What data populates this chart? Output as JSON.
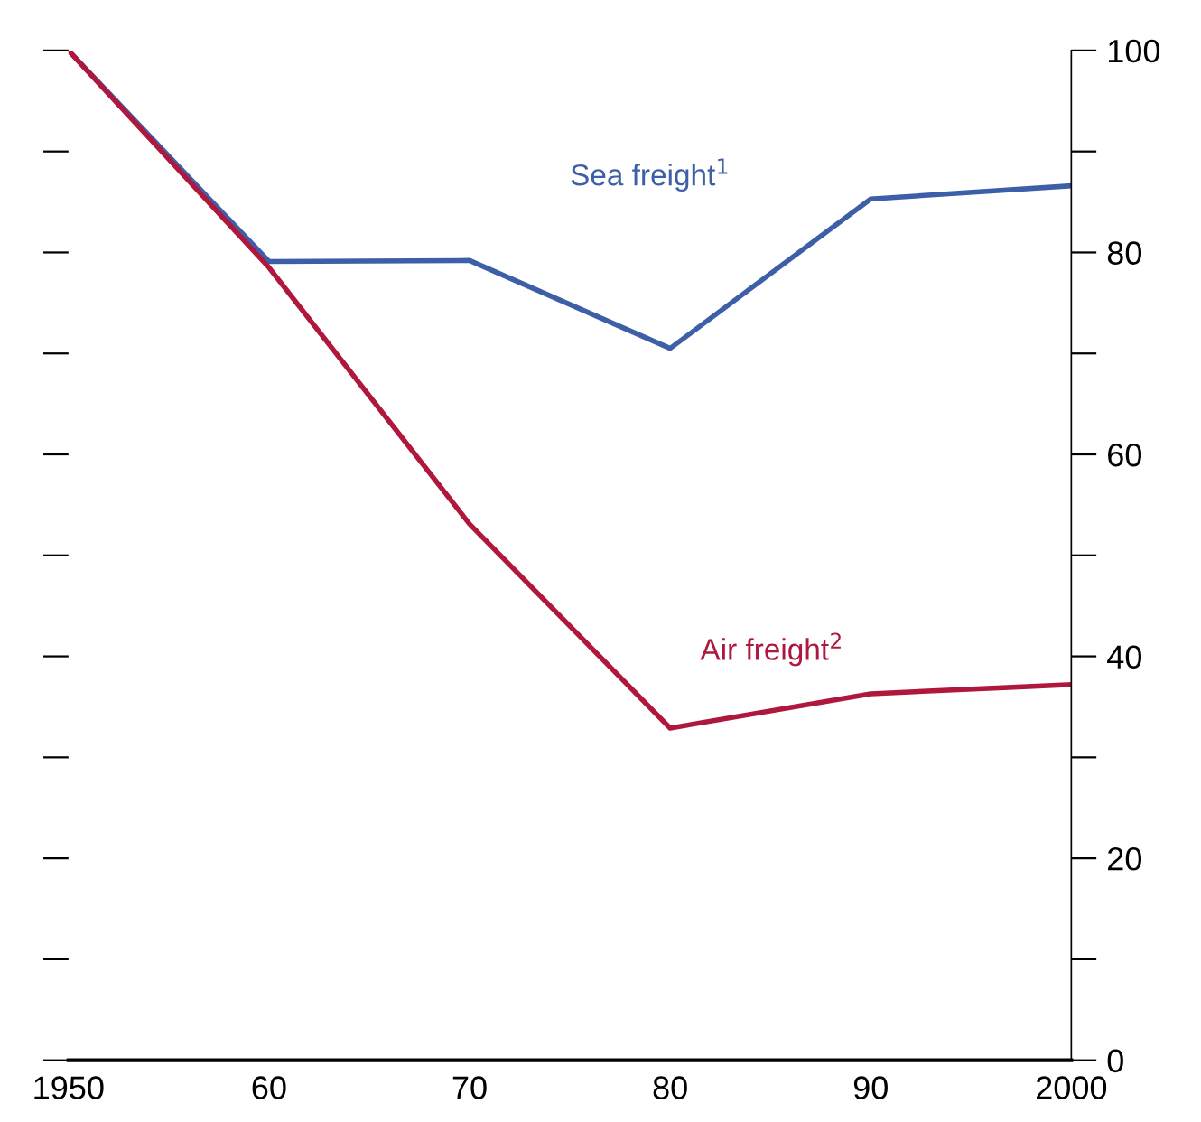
{
  "chart_data": {
    "type": "line",
    "x": [
      1950,
      1960,
      1970,
      1980,
      1990,
      2000
    ],
    "series": [
      {
        "name": "Sea freight$^{1}$",
        "color": "#3d5fa8",
        "values": [
          100,
          79.1,
          79.2,
          70.5,
          85.3,
          86.6
        ]
      },
      {
        "name": "Air freight$^{2}$",
        "color": "#b0173c",
        "values": [
          100,
          78.5,
          53.1,
          32.9,
          36.3,
          37.2
        ]
      }
    ],
    "xlim": [
      1950,
      2000
    ],
    "xticks": [
      1950,
      {
        "value": 1960,
        "label": "60"
      },
      {
        "value": 1970,
        "label": "70"
      },
      {
        "value": 1980,
        "label": "80"
      },
      {
        "value": 1990,
        "label": "90"
      },
      2000
    ],
    "ylim": [
      0,
      100
    ],
    "yticks": [
      0,
      {
        "value": 10,
        "label": null
      },
      20,
      {
        "value": 30,
        "label": null
      },
      40,
      {
        "value": 50,
        "label": null
      },
      60,
      {
        "value": 70,
        "label": null
      },
      80,
      {
        "value": 90,
        "label": null
      },
      100
    ],
    "grid": false,
    "legend": false,
    "marker": "none",
    "line_style": "solid"
  }
}
